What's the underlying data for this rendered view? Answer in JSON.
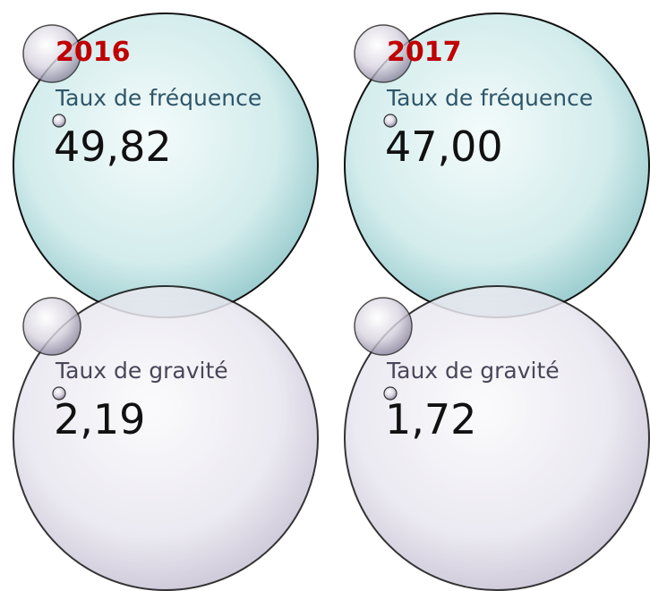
{
  "panels": [
    {
      "year": "2016",
      "metrics": [
        {
          "label": "Taux de fréquence",
          "value": "49,82"
        },
        {
          "label": "Taux de gravité",
          "value": "2,19"
        }
      ]
    },
    {
      "year": "2017",
      "metrics": [
        {
          "label": "Taux de fréquence",
          "value": "47,00"
        },
        {
          "label": "Taux de gravité",
          "value": "1,72"
        }
      ]
    }
  ]
}
